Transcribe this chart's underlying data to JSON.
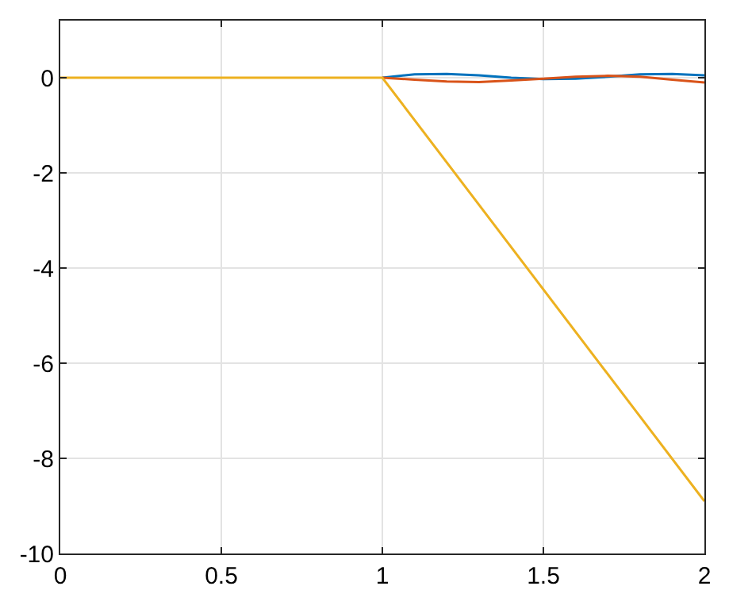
{
  "chart_data": {
    "type": "line",
    "xlim": [
      0,
      2
    ],
    "ylim": [
      -10,
      1.2
    ],
    "xticks": [
      0,
      0.5,
      1,
      1.5,
      2
    ],
    "yticks": [
      -10,
      -8,
      -6,
      -4,
      -2,
      0
    ],
    "grid": true,
    "legend": false,
    "marker": "none",
    "line_style": "solid",
    "series": [
      {
        "color": "#0072bd",
        "x": [
          1,
          1.1,
          1.2,
          1.3,
          1.4,
          1.5,
          1.6,
          1.7,
          1.8,
          1.9,
          2
        ],
        "values": [
          0,
          0.07,
          0.08,
          0.05,
          0,
          -0.03,
          -0.02,
          0.02,
          0.07,
          0.08,
          0.05
        ]
      },
      {
        "color": "#d95319",
        "x": [
          1,
          1.1,
          1.2,
          1.3,
          1.4,
          1.5,
          1.6,
          1.7,
          1.8,
          1.9,
          2
        ],
        "values": [
          0,
          -0.04,
          -0.08,
          -0.09,
          -0.06,
          -0.02,
          0.02,
          0.04,
          0.02,
          -0.04,
          -0.1
        ]
      },
      {
        "color": "#edb120",
        "x": [
          0,
          1,
          2
        ],
        "values": [
          0,
          0,
          -8.9
        ]
      }
    ]
  }
}
